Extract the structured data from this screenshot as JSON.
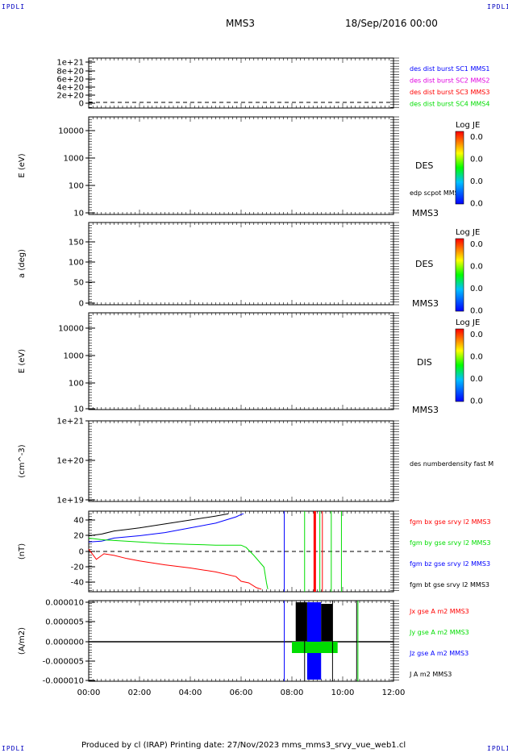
{
  "corner_label": "IPDLI",
  "header": {
    "spacecraft": "MMS3",
    "date": "18/Sep/2016 00:00"
  },
  "footer": "Produced by cl (IRAP)   Printing date: 27/Nov/2023   mms_mms3_srvy_vue_web1.cl",
  "colors": {
    "black": "#000000",
    "blue": "#0000ff",
    "magenta": "#e000e0",
    "red": "#ff0000",
    "green": "#00dd00"
  },
  "colorbar": {
    "title": "Log JE",
    "ticks": [
      "0.0",
      "0.0",
      "0.0",
      "0.0"
    ]
  },
  "chart_data": [
    {
      "type": "line",
      "ylabel": "",
      "yticks": [
        "0",
        "2e+20",
        "4e+20",
        "6e+20",
        "8e+20",
        "1e+21"
      ],
      "dashed_zero": true,
      "legend": [
        {
          "label": "des dist burst SC1 MMS1",
          "color": "blue"
        },
        {
          "label": "des dist burst SC2 MMS2",
          "color": "magenta"
        },
        {
          "label": "des dist burst SC3 MMS3",
          "color": "red"
        },
        {
          "label": "des dist burst SC4 MMS4",
          "color": "green"
        }
      ]
    },
    {
      "type": "heatmap",
      "ylabel": "E (eV)",
      "yscale": "log",
      "yticks": [
        "10",
        "100",
        "1000",
        "10000"
      ],
      "side_labels": [
        "DES",
        "edp scpot MMS3",
        "MMS3"
      ],
      "colorbar": true
    },
    {
      "type": "heatmap",
      "ylabel": "a (deg)",
      "yticks": [
        "0",
        "50",
        "100",
        "150"
      ],
      "ylim": [
        0,
        180
      ],
      "side_labels": [
        "DES",
        "MMS3"
      ],
      "colorbar": true
    },
    {
      "type": "heatmap",
      "ylabel": "E (eV)",
      "yscale": "log",
      "yticks": [
        "10",
        "100",
        "1000",
        "10000"
      ],
      "side_labels": [
        "DIS",
        "MMS3"
      ],
      "colorbar": true
    },
    {
      "type": "line",
      "ylabel": "(cm^-3)",
      "yscale": "log",
      "yticks": [
        "1e+19",
        "1e+20",
        "1e+21"
      ],
      "legend": [
        {
          "label": "des numberdensity fast M",
          "color": "black"
        }
      ]
    },
    {
      "type": "line",
      "ylabel": "(nT)",
      "ylim": [
        -48,
        48
      ],
      "yticks": [
        "-40",
        "-20",
        "0",
        "20",
        "40"
      ],
      "dashed_zero": true,
      "legend": [
        {
          "label": "fgm bx gse srvy l2 MMS3",
          "color": "red"
        },
        {
          "label": "fgm by gse srvy l2 MMS3",
          "color": "green"
        },
        {
          "label": "fgm bz gse srvy l2 MMS3",
          "color": "blue"
        },
        {
          "label": "fgm bt gse srvy l2 MMS3",
          "color": "black"
        }
      ],
      "series": [
        {
          "name": "fgm bt gse srvy l2 MMS3",
          "color": "black",
          "points": [
            [
              0,
              20
            ],
            [
              0.5,
              22
            ],
            [
              1,
              26
            ],
            [
              1.5,
              28
            ],
            [
              2,
              30
            ],
            [
              3,
              35
            ],
            [
              4,
              40
            ],
            [
              5,
              45
            ],
            [
              5.5,
              48
            ]
          ]
        },
        {
          "name": "fgm bz gse srvy l2 MMS3",
          "color": "blue",
          "points": [
            [
              0,
              12
            ],
            [
              0.5,
              13
            ],
            [
              1,
              17
            ],
            [
              2,
              20
            ],
            [
              3,
              24
            ],
            [
              4,
              30
            ],
            [
              5,
              36
            ],
            [
              5.8,
              44
            ],
            [
              6,
              47
            ],
            [
              6.1,
              48
            ]
          ]
        },
        {
          "name": "fgm by gse srvy l2 MMS3",
          "color": "green",
          "points": [
            [
              0,
              17
            ],
            [
              0.5,
              15
            ],
            [
              1,
              14
            ],
            [
              2,
              12
            ],
            [
              3,
              10
            ],
            [
              4,
              9
            ],
            [
              5,
              8
            ],
            [
              6,
              8
            ],
            [
              6.2,
              5
            ],
            [
              6.5,
              -5
            ],
            [
              6.9,
              -20
            ],
            [
              7,
              -40
            ],
            [
              7.05,
              -48
            ]
          ]
        },
        {
          "name": "fgm bx gse srvy l2 MMS3",
          "color": "red",
          "points": [
            [
              0,
              3
            ],
            [
              0.3,
              -10
            ],
            [
              0.6,
              -3
            ],
            [
              1,
              -5
            ],
            [
              1.5,
              -9
            ],
            [
              2,
              -12
            ],
            [
              3,
              -17
            ],
            [
              4,
              -21
            ],
            [
              5,
              -26
            ],
            [
              5.8,
              -32
            ],
            [
              6,
              -38
            ],
            [
              6.3,
              -40
            ],
            [
              6.6,
              -46
            ],
            [
              6.8,
              -48
            ]
          ]
        }
      ]
    },
    {
      "type": "line",
      "ylabel": "(A/m2)",
      "ylim": [
        -1e-05,
        1e-05
      ],
      "yticks": [
        "-0.000010",
        "-0.000005",
        "0.000000",
        "0.000005",
        "0.000010"
      ],
      "legend": [
        {
          "label": "Jx gse A m2 MMS3",
          "color": "red"
        },
        {
          "label": "Jy gse A m2 MMS3",
          "color": "green"
        },
        {
          "label": "Jz gse A m2 MMS3",
          "color": "blue"
        },
        {
          "label": "J A m2 MMS3",
          "color": "black"
        }
      ]
    }
  ],
  "xaxis": {
    "ticks": [
      "00:00",
      "02:00",
      "04:00",
      "06:00",
      "08:00",
      "10:00",
      "12:00"
    ],
    "range_hours": [
      0,
      12
    ]
  }
}
